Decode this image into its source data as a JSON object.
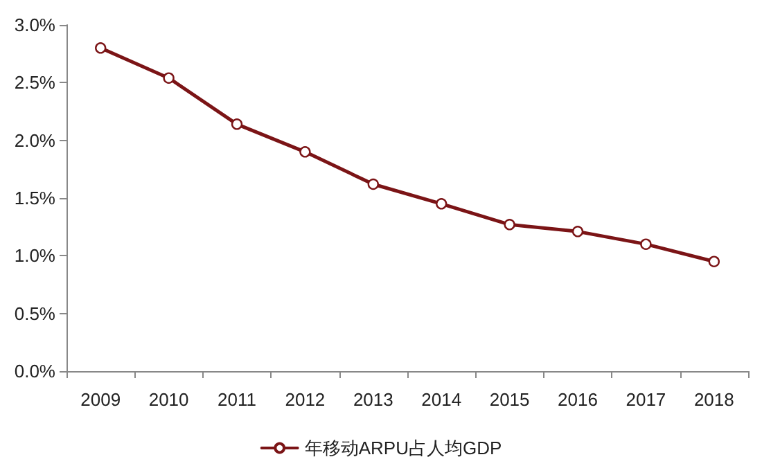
{
  "chart_data": {
    "type": "line",
    "categories": [
      "2009",
      "2010",
      "2011",
      "2012",
      "2013",
      "2014",
      "2015",
      "2016",
      "2017",
      "2018"
    ],
    "series": [
      {
        "name": "年移动ARPU占人均GDP",
        "color": "#7b1416",
        "values": [
          2.8,
          2.54,
          2.14,
          1.9,
          1.62,
          1.45,
          1.27,
          1.21,
          1.1,
          0.95
        ]
      }
    ],
    "ylim": [
      0,
      3
    ],
    "yticks": [
      {
        "value": 0,
        "label": "0.0%"
      },
      {
        "value": 0.5,
        "label": "0.5%"
      },
      {
        "value": 1,
        "label": "1.0%"
      },
      {
        "value": 1.5,
        "label": "1.5%"
      },
      {
        "value": 2,
        "label": "2.0%"
      },
      {
        "value": 2.5,
        "label": "2.5%"
      },
      {
        "value": 3,
        "label": "3.0%"
      }
    ],
    "grid": false,
    "legend": "bottom",
    "marker": "circle",
    "line_style": "solid"
  }
}
